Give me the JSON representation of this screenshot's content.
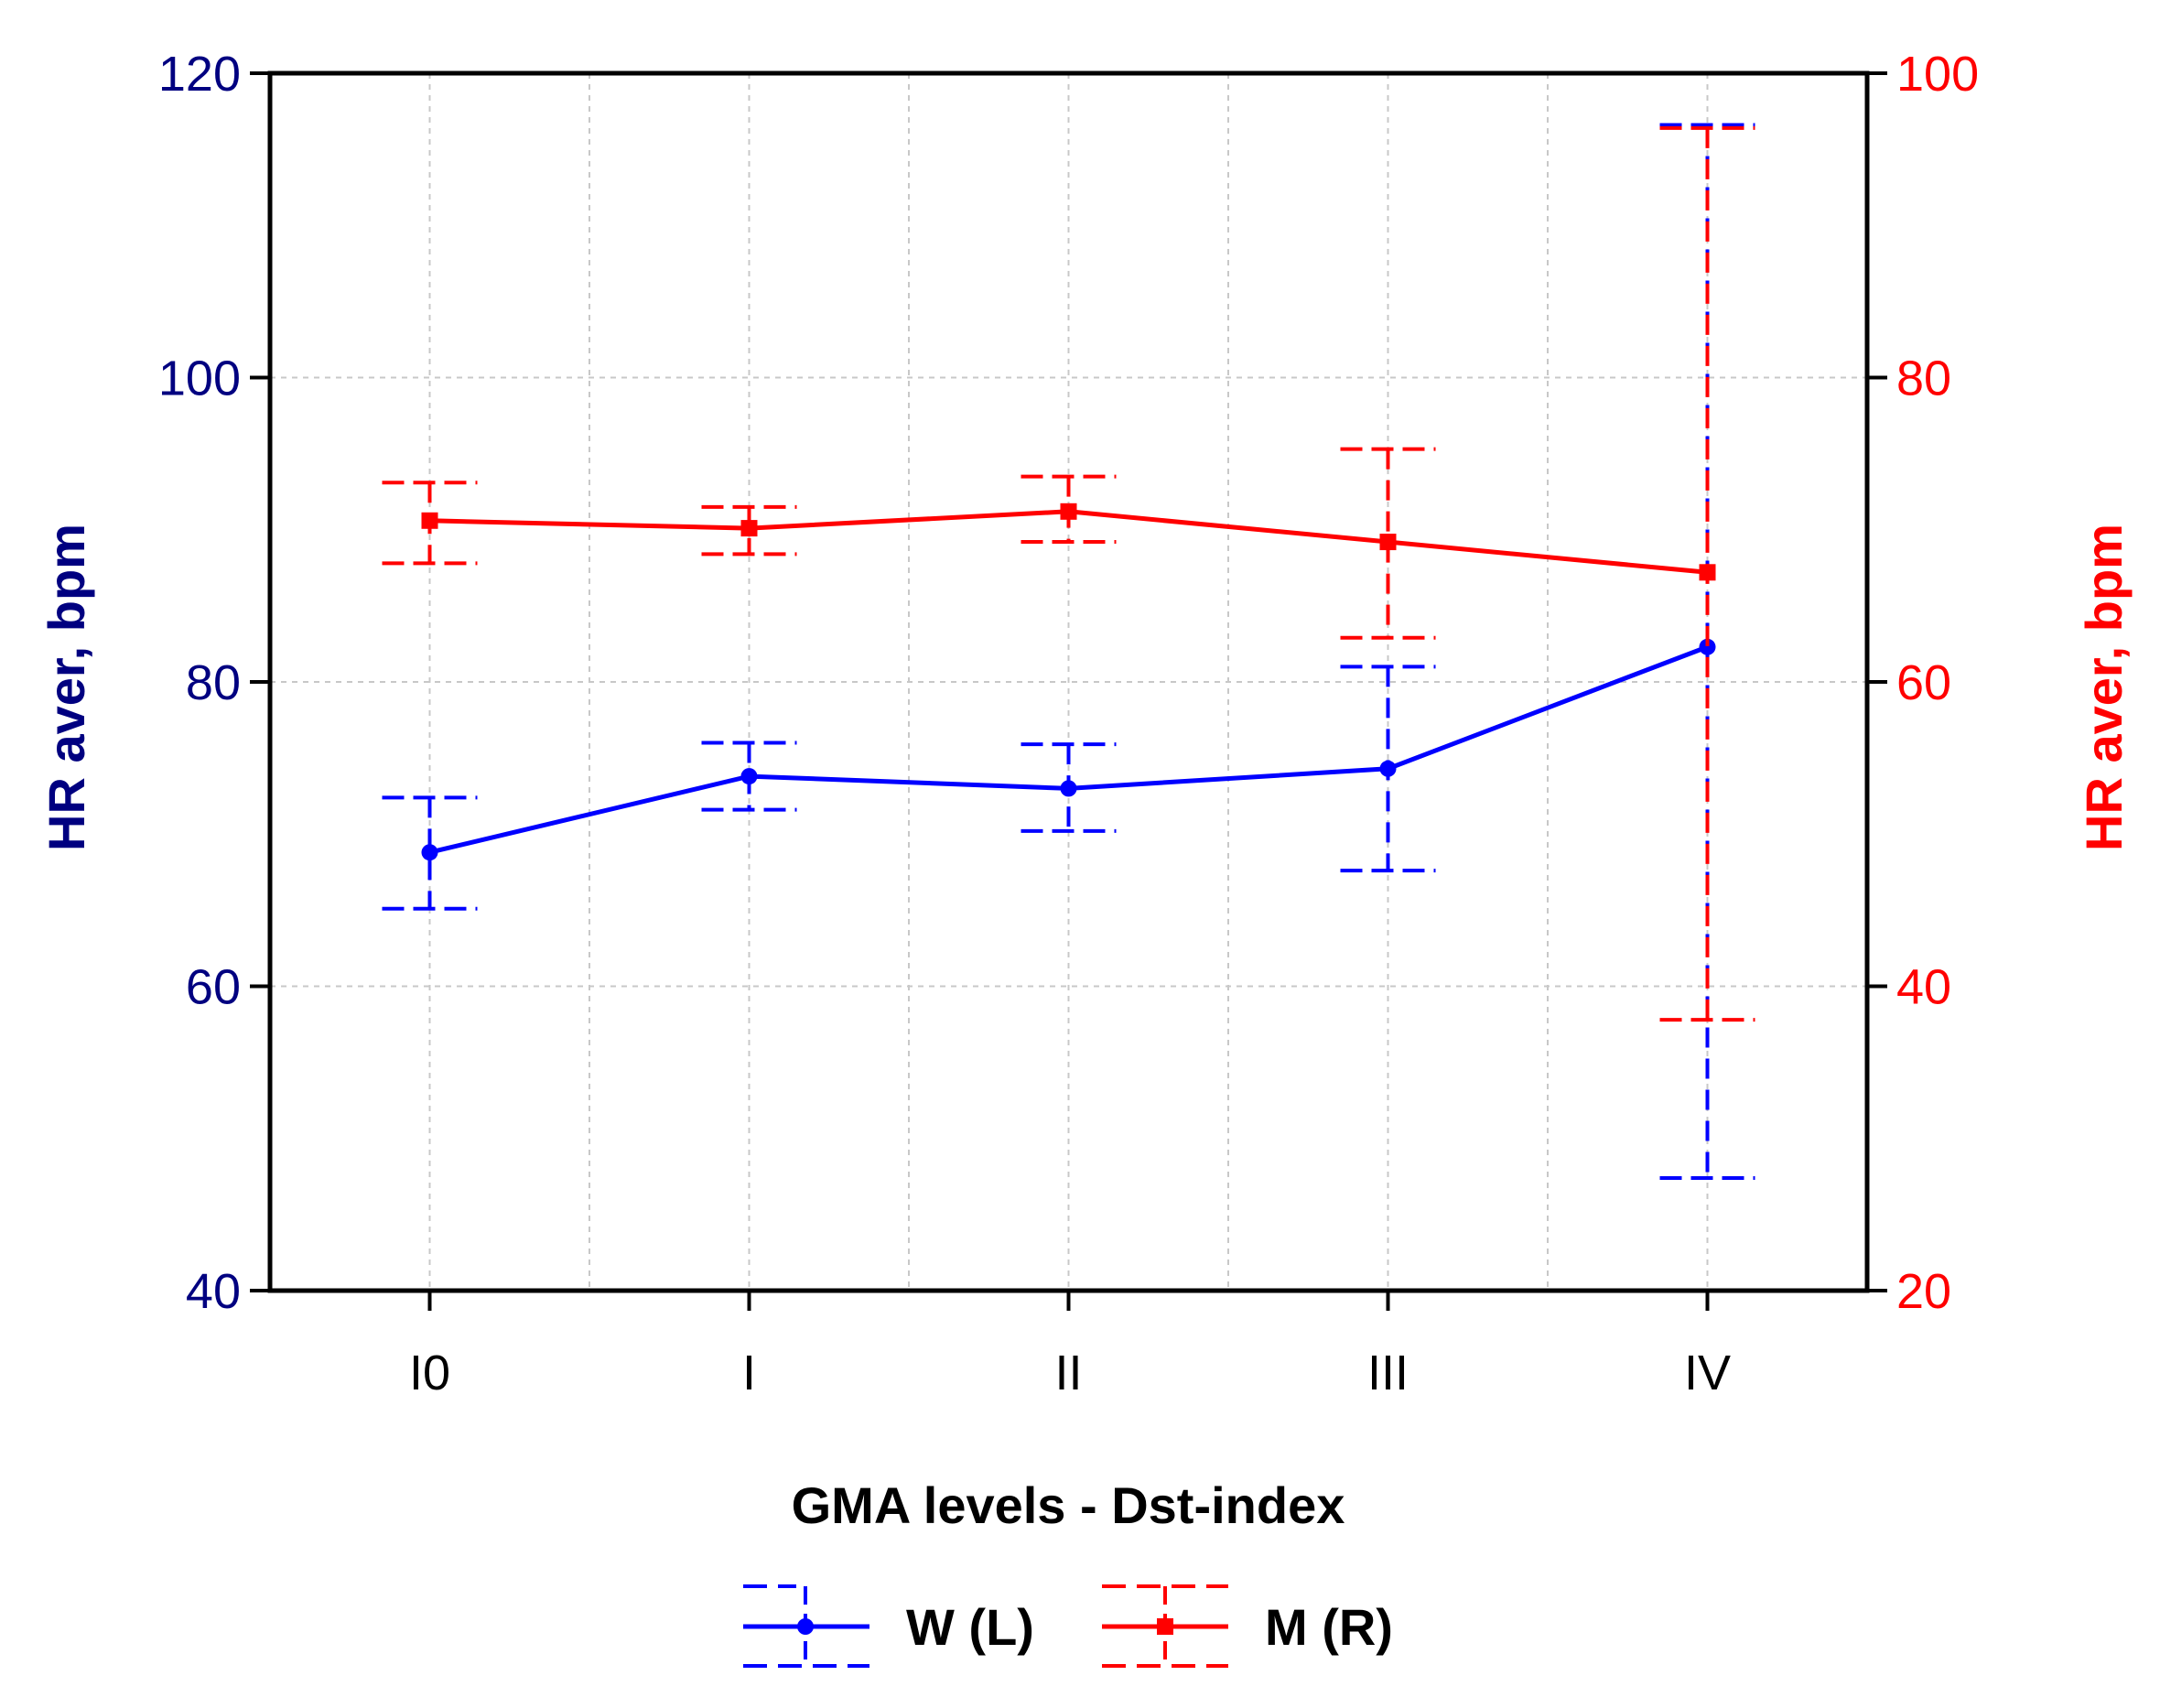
{
  "chart_data": {
    "type": "line",
    "xlabel": "GMA levels - Dst-index",
    "categories": [
      "I0",
      "I",
      "II",
      "III",
      "IV"
    ],
    "y_left": {
      "label": "HR aver, bpm",
      "range": [
        40,
        120
      ],
      "ticks": [
        40,
        60,
        80,
        100,
        120
      ],
      "color": "#000080"
    },
    "y_right": {
      "label": "HR aver, bpm",
      "range": [
        20,
        100
      ],
      "ticks": [
        20,
        40,
        60,
        80,
        100
      ],
      "color": "#ff0000"
    },
    "grid": true,
    "legend_position": "bottom-center",
    "series": [
      {
        "name": "W (L)",
        "axis": "left",
        "color": "#0000ff",
        "marker": "circle",
        "values": [
          68.8,
          73.8,
          73.0,
          74.3,
          82.3
        ],
        "ci_lower": [
          65.1,
          71.6,
          70.2,
          67.6,
          47.4
        ],
        "ci_upper": [
          72.4,
          76.0,
          75.9,
          81.0,
          116.6
        ]
      },
      {
        "name": "M (R)",
        "axis": "right",
        "color": "#ff0000",
        "marker": "square",
        "values": [
          70.6,
          70.1,
          71.2,
          69.2,
          67.2
        ],
        "ci_lower": [
          67.8,
          68.4,
          69.2,
          62.9,
          37.8
        ],
        "ci_upper": [
          73.1,
          71.5,
          73.5,
          75.3,
          96.4
        ]
      }
    ]
  }
}
